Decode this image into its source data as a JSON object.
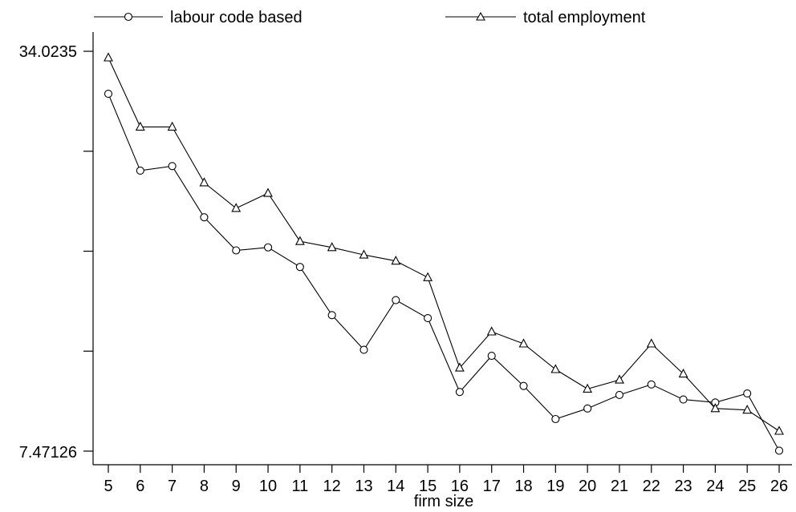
{
  "chart_data": {
    "type": "line",
    "title": "",
    "xlabel": "firm size",
    "ylabel": "",
    "x": [
      5,
      6,
      7,
      8,
      9,
      10,
      11,
      12,
      13,
      14,
      15,
      16,
      17,
      18,
      19,
      20,
      21,
      22,
      23,
      24,
      25,
      26
    ],
    "y_tick_labels": [
      "34.0235",
      "7.47126"
    ],
    "ylim": [
      7.47126,
      34.0235
    ],
    "grid": false,
    "legend_position": "top",
    "series": [
      {
        "name": "labour code based",
        "marker": "circle",
        "values": [
          31.2,
          26.1,
          26.4,
          23.0,
          20.8,
          21.0,
          19.7,
          16.5,
          14.2,
          17.5,
          16.3,
          11.4,
          13.8,
          11.8,
          9.6,
          10.3,
          11.2,
          11.9,
          10.9,
          10.7,
          11.3,
          7.5
        ]
      },
      {
        "name": "total employment",
        "marker": "triangle",
        "values": [
          33.6,
          29.0,
          29.0,
          25.3,
          23.6,
          24.6,
          21.4,
          21.0,
          20.5,
          20.1,
          19.0,
          13.0,
          15.4,
          14.6,
          12.9,
          11.6,
          12.2,
          14.6,
          12.6,
          10.3,
          10.2,
          8.8
        ]
      }
    ]
  }
}
